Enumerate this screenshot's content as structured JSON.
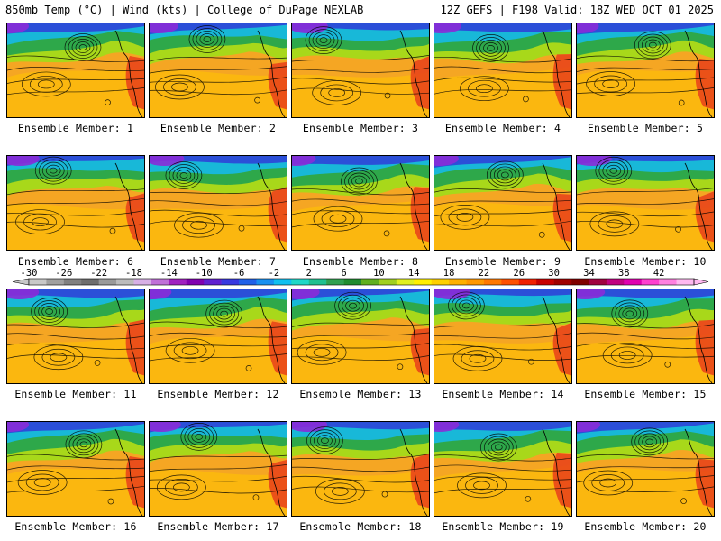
{
  "header": {
    "title_left": "850mb Temp (°C) | Wind (kts) | College of DuPage NEXLAB",
    "title_right": "12Z GEFS | F198 Valid: 18Z WED OCT 01 2025"
  },
  "members": [
    {
      "label": "Ensemble Member: 1"
    },
    {
      "label": "Ensemble Member: 2"
    },
    {
      "label": "Ensemble Member: 3"
    },
    {
      "label": "Ensemble Member: 4"
    },
    {
      "label": "Ensemble Member: 5"
    },
    {
      "label": "Ensemble Member: 6"
    },
    {
      "label": "Ensemble Member: 7"
    },
    {
      "label": "Ensemble Member: 8"
    },
    {
      "label": "Ensemble Member: 9"
    },
    {
      "label": "Ensemble Member: 10"
    },
    {
      "label": "Ensemble Member: 11"
    },
    {
      "label": "Ensemble Member: 12"
    },
    {
      "label": "Ensemble Member: 13"
    },
    {
      "label": "Ensemble Member: 14"
    },
    {
      "label": "Ensemble Member: 15"
    },
    {
      "label": "Ensemble Member: 16"
    },
    {
      "label": "Ensemble Member: 17"
    },
    {
      "label": "Ensemble Member: 18"
    },
    {
      "label": "Ensemble Member: 19"
    },
    {
      "label": "Ensemble Member: 20"
    }
  ],
  "colorbar": {
    "ticks": [
      "-30",
      "-26",
      "-22",
      "-18",
      "-14",
      "-10",
      "-6",
      "-2",
      "2",
      "6",
      "10",
      "14",
      "18",
      "22",
      "26",
      "30",
      "34",
      "38",
      "42"
    ],
    "colors": [
      "#c8c8c8",
      "#a0a0a0",
      "#808080",
      "#6e6e6e",
      "#9a9a9a",
      "#bcbcbc",
      "#d7b0e6",
      "#c070d8",
      "#a020c0",
      "#8000b0",
      "#6020d0",
      "#3838e0",
      "#2060e8",
      "#1890f0",
      "#10c0f0",
      "#20d8c8",
      "#20c090",
      "#30a050",
      "#208c30",
      "#60b020",
      "#a0d020",
      "#e0f020",
      "#fff000",
      "#ffd000",
      "#ffb000",
      "#ff9800",
      "#ff7800",
      "#ff5000",
      "#f02000",
      "#c80000",
      "#a00000",
      "#800000",
      "#a00040",
      "#c00080",
      "#e000b0",
      "#ff40d0",
      "#ff80e0",
      "#ffb8f0"
    ]
  },
  "map_palette": {
    "ocean_warm": "#f5a623",
    "subtropical": "#ffc400",
    "midlat": "#a8d81a",
    "green": "#2ea84a",
    "cool": "#18b8d8",
    "cold": "#2b4fd8",
    "arctic": "#8a2bd8",
    "hot_land": "#e8401a"
  }
}
